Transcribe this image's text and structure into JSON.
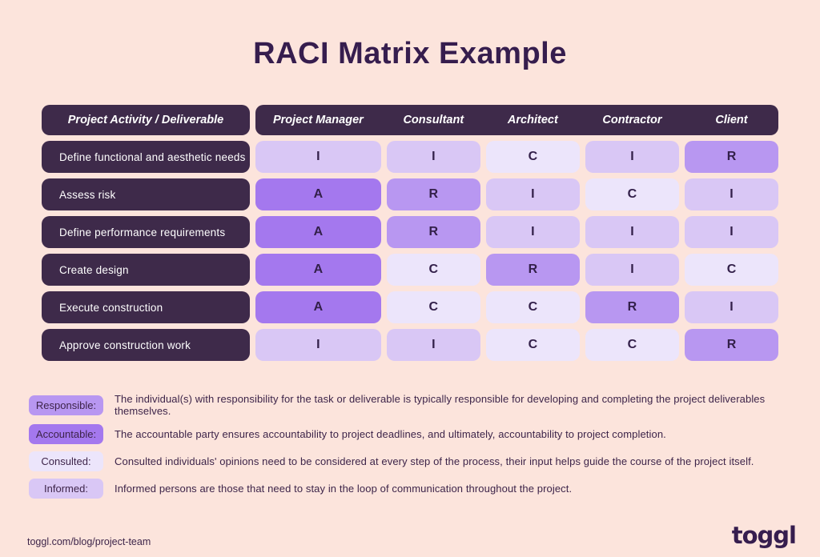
{
  "title": "RACI Matrix Example",
  "colors": {
    "background": "#fce4dc",
    "dark_box": "#3e2a4a",
    "title_text": "#361d4e",
    "cell_letter": "#33204a",
    "legend_text": "#3d2449",
    "responsible": "#b897f1",
    "accountable": "#a478ee",
    "consulted": "#ece5fb",
    "informed": "#d9c7f5"
  },
  "table": {
    "activity_header": "Project Activity / Deliverable",
    "role_headers": [
      "Project Manager",
      "Consultant",
      "Architect",
      "Contractor",
      "Client"
    ],
    "rows": [
      {
        "activity": "Define functional and aesthetic needs",
        "cells": [
          "I",
          "I",
          "C",
          "I",
          "R"
        ]
      },
      {
        "activity": "Assess risk",
        "cells": [
          "A",
          "R",
          "I",
          "C",
          "I"
        ]
      },
      {
        "activity": "Define performance requirements",
        "cells": [
          "A",
          "R",
          "I",
          "I",
          "I"
        ]
      },
      {
        "activity": "Create design",
        "cells": [
          "A",
          "C",
          "R",
          "I",
          "C"
        ]
      },
      {
        "activity": "Execute construction",
        "cells": [
          "A",
          "C",
          "C",
          "R",
          "I"
        ]
      },
      {
        "activity": "Approve construction work",
        "cells": [
          "I",
          "I",
          "C",
          "C",
          "R"
        ]
      }
    ]
  },
  "cell_color_map": {
    "R": "responsible",
    "A": "accountable",
    "C": "consulted",
    "I": "informed"
  },
  "legend": [
    {
      "label": "Responsible:",
      "color_key": "responsible",
      "description": "The individual(s) with responsibility for the task or deliverable is typically responsible for developing and completing the project deliverables themselves."
    },
    {
      "label": "Accountable:",
      "color_key": "accountable",
      "description": "The accountable party ensures accountability to project deadlines, and ultimately, accountability to project completion."
    },
    {
      "label": "Consulted:",
      "color_key": "consulted",
      "description": "Consulted individuals' opinions need to be considered at every step of the process, their input helps guide the course of the project itself."
    },
    {
      "label": "Informed:",
      "color_key": "informed",
      "description": "Informed persons are those that need to stay in the loop of communication throughout the project."
    }
  ],
  "footer": {
    "url": "toggl.com/blog/project-team",
    "logo": "toggl"
  }
}
